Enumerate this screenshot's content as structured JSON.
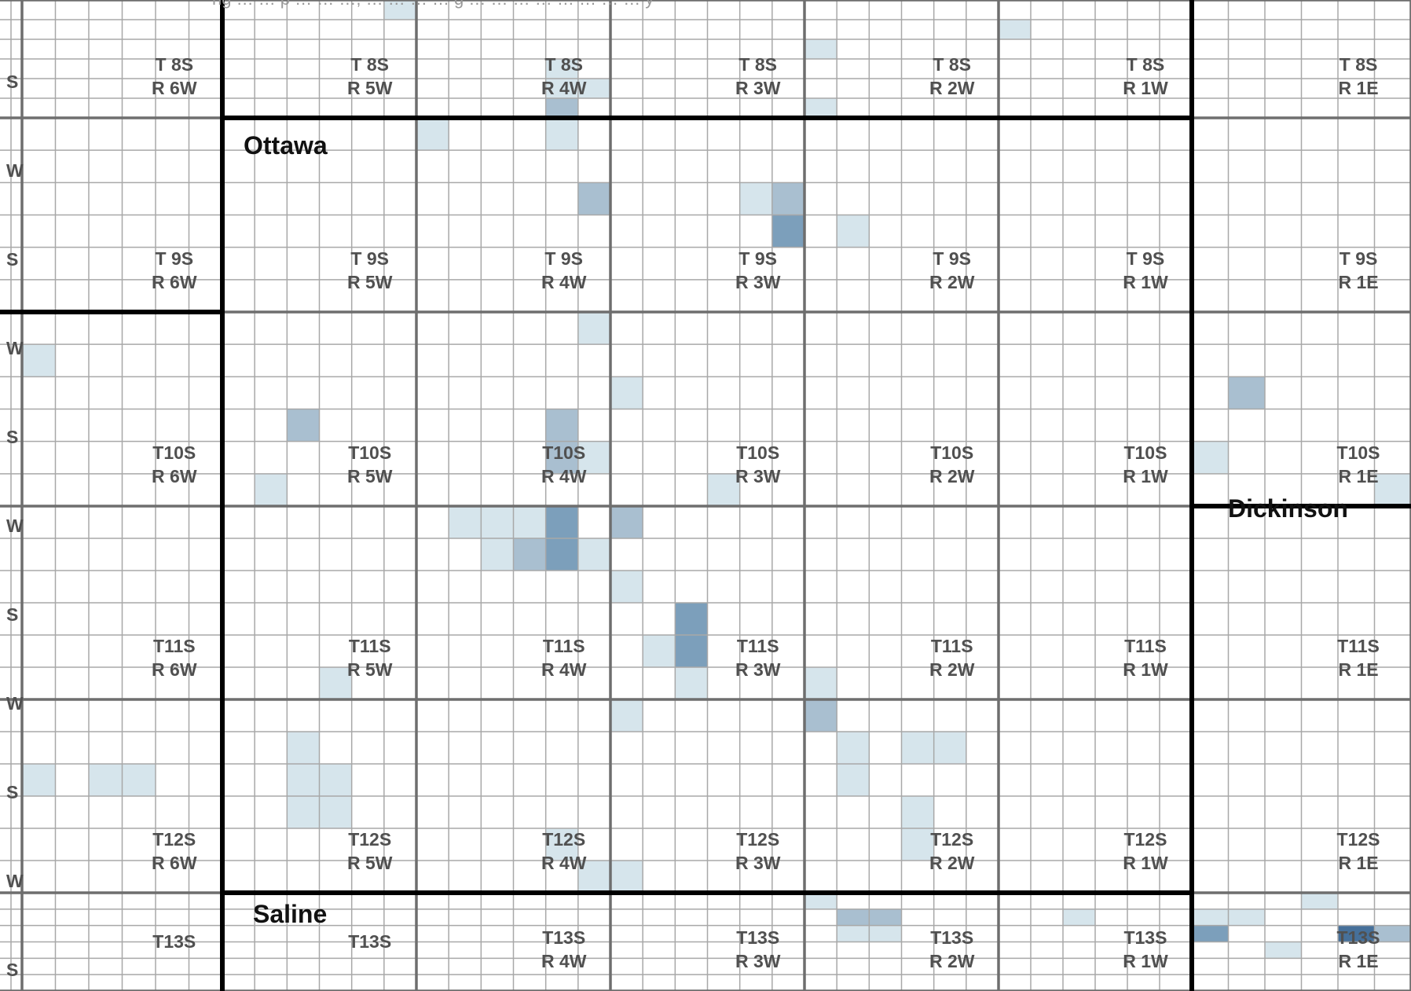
{
  "map": {
    "top_caption": "ng … … p … … …, … … … … g … … … … … … … … y",
    "counties": [
      {
        "name": "Ottawa"
      },
      {
        "name": "Dickinson"
      },
      {
        "name": "Saline"
      }
    ],
    "townships": [
      {
        "t": "T 8S",
        "r": "R 6W"
      },
      {
        "t": "T 8S",
        "r": "R 5W"
      },
      {
        "t": "T 8S",
        "r": "R 4W"
      },
      {
        "t": "T 8S",
        "r": "R 3W"
      },
      {
        "t": "T 8S",
        "r": "R 2W"
      },
      {
        "t": "T 8S",
        "r": "R 1W"
      },
      {
        "t": "T 8S",
        "r": "R 1E"
      },
      {
        "t": "T 9S",
        "r": "R 6W"
      },
      {
        "t": "T 9S",
        "r": "R 5W"
      },
      {
        "t": "T 9S",
        "r": "R 4W"
      },
      {
        "t": "T 9S",
        "r": "R 3W"
      },
      {
        "t": "T 9S",
        "r": "R 2W"
      },
      {
        "t": "T 9S",
        "r": "R 1W"
      },
      {
        "t": "T 9S",
        "r": "R 1E"
      },
      {
        "t": "T10S",
        "r": "R 6W"
      },
      {
        "t": "T10S",
        "r": "R 5W"
      },
      {
        "t": "T10S",
        "r": "R 4W"
      },
      {
        "t": "T10S",
        "r": "R 3W"
      },
      {
        "t": "T10S",
        "r": "R 2W"
      },
      {
        "t": "T10S",
        "r": "R 1W"
      },
      {
        "t": "T10S",
        "r": "R 1E"
      },
      {
        "t": "T11S",
        "r": "R 6W"
      },
      {
        "t": "T11S",
        "r": "R 5W"
      },
      {
        "t": "T11S",
        "r": "R 4W"
      },
      {
        "t": "T11S",
        "r": "R 3W"
      },
      {
        "t": "T11S",
        "r": "R 2W"
      },
      {
        "t": "T11S",
        "r": "R 1W"
      },
      {
        "t": "T11S",
        "r": "R 1E"
      },
      {
        "t": "T12S",
        "r": "R 6W"
      },
      {
        "t": "T12S",
        "r": "R 5W"
      },
      {
        "t": "T12S",
        "r": "R 4W"
      },
      {
        "t": "T12S",
        "r": "R 3W"
      },
      {
        "t": "T12S",
        "r": "R 2W"
      },
      {
        "t": "T12S",
        "r": "R 1W"
      },
      {
        "t": "T12S",
        "r": "R 1E"
      },
      {
        "t": "T13S",
        "r": ""
      },
      {
        "t": "T13S",
        "r": ""
      },
      {
        "t": "T13S",
        "r": "R 4W"
      },
      {
        "t": "T13S",
        "r": "R 3W"
      },
      {
        "t": "T13S",
        "r": "R 2W"
      },
      {
        "t": "T13S",
        "r": "R 1W"
      },
      {
        "t": "T13S",
        "r": "R 1E"
      }
    ],
    "clipped_left_labels": [
      "S",
      "W",
      "S",
      "W",
      "S",
      "W",
      "S",
      "W",
      "S",
      "W",
      "S"
    ],
    "colors": {
      "shade_1": "#d6e5ec",
      "shade_2": "#a9bfd0",
      "shade_3": "#7c9fbb",
      "shade_4": "#46709a",
      "section_line": "#a8a8a8",
      "township_line": "#6e6e6e",
      "county_line": "#000000",
      "label": "#505050"
    }
  }
}
